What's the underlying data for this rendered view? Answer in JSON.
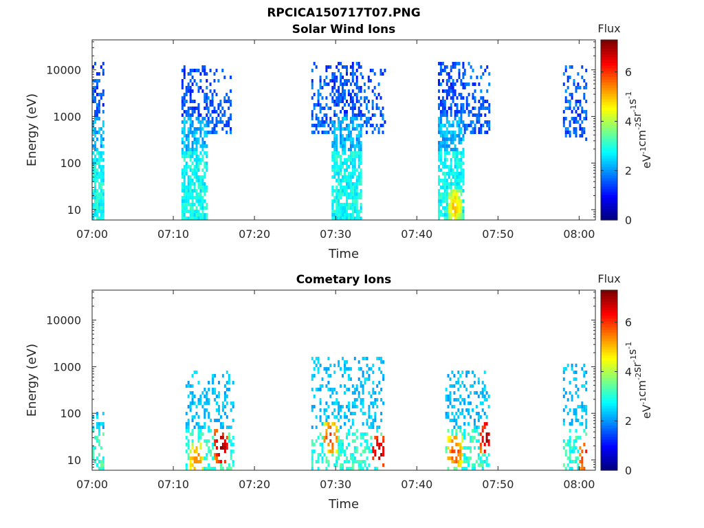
{
  "figure_title": "RPCICA150717T07.PNG",
  "colorbar": {
    "title": "Flux",
    "label": "eV⁻¹cm⁻²sr⁻¹s⁻¹",
    "range": [
      0,
      7.3
    ],
    "ticks": [
      "0",
      "2",
      "4",
      "6"
    ],
    "colormap": "jet"
  },
  "chart_data": [
    {
      "type": "heatmap",
      "title": "Solar Wind Ions",
      "xlabel": "Time",
      "ylabel": "Energy (eV)",
      "xlim": [
        "07:00",
        "08:02"
      ],
      "ylim": [
        6,
        44000
      ],
      "yscale": "log",
      "x_ticks": [
        "07:00",
        "07:10",
        "07:20",
        "07:30",
        "07:40",
        "07:50",
        "08:00"
      ],
      "y_ticks": [
        "10",
        "100",
        "1000",
        "10000"
      ],
      "bursts": [
        {
          "start": 0.0,
          "end": 1.3,
          "emax": 15000,
          "vmax": 3.0,
          "seed": 1,
          "density": 0.85
        },
        {
          "start": 11.0,
          "end": 14.2,
          "emax": 13000,
          "vmax": 3.3,
          "seed": 2,
          "density": 0.9
        },
        {
          "start": 14.2,
          "end": 17.2,
          "emin": 400,
          "emax": 11000,
          "vmax": 2.0,
          "seed": 3,
          "density": 0.4
        },
        {
          "start": 27.0,
          "end": 29.5,
          "emin": 400,
          "emax": 16000,
          "vmax": 2.0,
          "seed": 4,
          "density": 0.45
        },
        {
          "start": 29.5,
          "end": 33.2,
          "emax": 16000,
          "vmax": 3.2,
          "seed": 5,
          "density": 0.9
        },
        {
          "start": 33.2,
          "end": 36.0,
          "emin": 400,
          "emax": 11000,
          "vmax": 2.0,
          "seed": 6,
          "density": 0.4
        },
        {
          "start": 42.6,
          "end": 45.8,
          "emax": 16000,
          "vmax": 3.6,
          "hot": {
            "t": 44.6,
            "e": 12,
            "v": 5.0
          },
          "seed": 7,
          "density": 0.9
        },
        {
          "start": 45.8,
          "end": 49.0,
          "emin": 400,
          "emax": 16000,
          "vmax": 2.0,
          "seed": 8,
          "density": 0.45
        },
        {
          "start": 58.0,
          "end": 61.0,
          "emin": 300,
          "emax": 14000,
          "vmax": 2.0,
          "seed": 9,
          "density": 0.45
        }
      ]
    },
    {
      "type": "heatmap",
      "title": "Cometary Ions",
      "xlabel": "Time",
      "ylabel": "Energy (eV)",
      "xlim": [
        "07:00",
        "08:02"
      ],
      "ylim": [
        6,
        44000
      ],
      "yscale": "log",
      "x_ticks": [
        "07:00",
        "07:10",
        "07:20",
        "07:30",
        "07:40",
        "07:50",
        "08:00"
      ],
      "y_ticks": [
        "10",
        "100",
        "1000",
        "10000"
      ],
      "bursts": [
        {
          "start": 0.0,
          "end": 1.3,
          "emax": 150,
          "vmax": 3.5,
          "seed": 11,
          "density": 0.55
        },
        {
          "start": 11.5,
          "end": 17.5,
          "emax": 900,
          "vmax": 2.3,
          "hot": {
            "t": 15.8,
            "e": 20,
            "v": 7.0
          },
          "hot2": {
            "t": 12.8,
            "e": 10,
            "v": 5.5
          },
          "seed": 12,
          "density": 0.45
        },
        {
          "start": 27.0,
          "end": 36.0,
          "emax": 1800,
          "vmax": 2.3,
          "hot": {
            "t": 35.2,
            "e": 15,
            "v": 7.0
          },
          "hot2": {
            "t": 29.3,
            "e": 30,
            "v": 6.0
          },
          "seed": 13,
          "density": 0.45
        },
        {
          "start": 43.5,
          "end": 49.0,
          "emax": 900,
          "vmax": 2.5,
          "hot": {
            "t": 48.5,
            "e": 30,
            "v": 7.0
          },
          "hot2": {
            "t": 44.6,
            "e": 15,
            "v": 6.0
          },
          "seed": 14,
          "density": 0.5
        },
        {
          "start": 58.0,
          "end": 61.0,
          "emax": 1200,
          "vmax": 2.3,
          "hot": {
            "t": 60.8,
            "e": 10,
            "v": 6.5
          },
          "seed": 15,
          "density": 0.45
        }
      ]
    }
  ]
}
